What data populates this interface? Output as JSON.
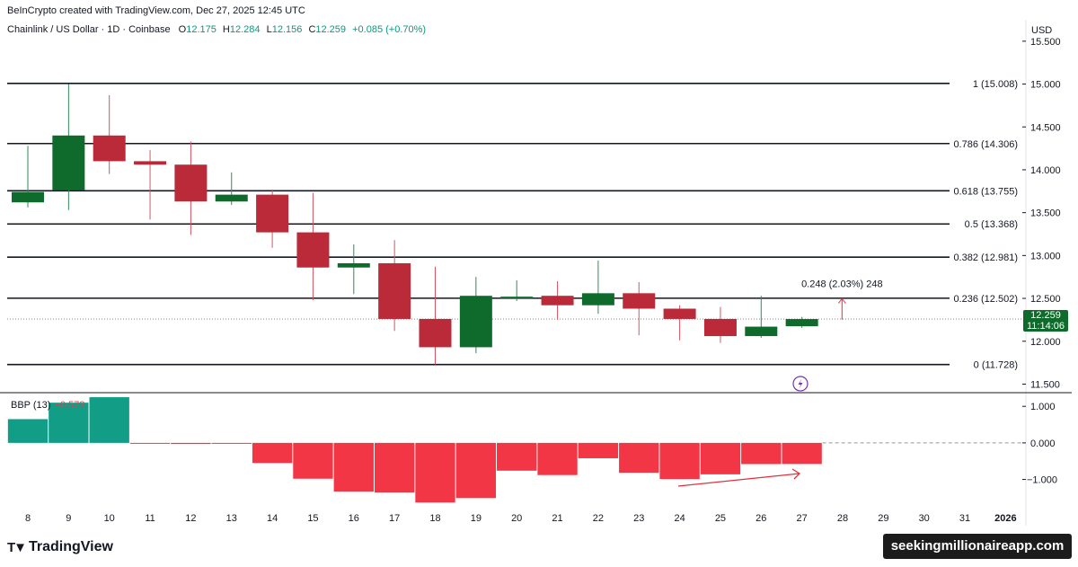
{
  "header": {
    "credit": "BeInCrypto created with TradingView.com, Dec 27, 2025 12:45 UTC",
    "symbol": "Chainlink / US Dollar · 1D · Coinbase",
    "o_label": "O",
    "o_value": "12.175",
    "h_label": "H",
    "h_value": "12.284",
    "l_label": "L",
    "l_value": "12.156",
    "c_label": "C",
    "c_value": "12.259",
    "change": "+0.085 (+0.70%)",
    "currency": "USD"
  },
  "price_badge": {
    "price": "12.259",
    "countdown": "11:14:06"
  },
  "indicator": {
    "name": "BBP (13)",
    "value": "−0.578"
  },
  "branding": {
    "logo": "TradingView",
    "watermark": "seekingmillionaireapp.com"
  },
  "colors": {
    "up": "#0f6b2b",
    "down": "#bb2a38",
    "bbp_pos": "#129e86",
    "bbp_neg": "#f23645",
    "accent_red": "#e0313c"
  },
  "chart_data": {
    "type": "candlestick",
    "title": "Chainlink / US Dollar · 1D · Coinbase",
    "x_ticks": [
      "8",
      "9",
      "10",
      "11",
      "12",
      "13",
      "14",
      "15",
      "16",
      "17",
      "18",
      "19",
      "20",
      "21",
      "22",
      "23",
      "24",
      "25",
      "26",
      "27",
      "28",
      "29",
      "30",
      "31",
      "2026"
    ],
    "y_ticks": [
      "15.500",
      "15.000",
      "14.500",
      "14.000",
      "13.500",
      "13.000",
      "12.500",
      "12.000",
      "11.500"
    ],
    "ylim": [
      11.4,
      15.75
    ],
    "candles": [
      {
        "day": "8",
        "o": 13.62,
        "h": 14.28,
        "l": 13.56,
        "c": 13.74
      },
      {
        "day": "9",
        "o": 13.76,
        "h": 15.0,
        "l": 13.53,
        "c": 14.4
      },
      {
        "day": "10",
        "o": 14.4,
        "h": 14.87,
        "l": 13.95,
        "c": 14.1
      },
      {
        "day": "11",
        "o": 14.1,
        "h": 14.23,
        "l": 13.42,
        "c": 14.06
      },
      {
        "day": "12",
        "o": 14.06,
        "h": 14.33,
        "l": 13.24,
        "c": 13.63
      },
      {
        "day": "13",
        "o": 13.63,
        "h": 13.97,
        "l": 13.59,
        "c": 13.71
      },
      {
        "day": "14",
        "o": 13.71,
        "h": 13.77,
        "l": 13.09,
        "c": 13.27
      },
      {
        "day": "15",
        "o": 13.27,
        "h": 13.73,
        "l": 12.48,
        "c": 12.86
      },
      {
        "day": "16",
        "o": 12.86,
        "h": 13.13,
        "l": 12.55,
        "c": 12.91
      },
      {
        "day": "17",
        "o": 12.91,
        "h": 13.18,
        "l": 12.12,
        "c": 12.26
      },
      {
        "day": "18",
        "o": 12.26,
        "h": 12.87,
        "l": 11.73,
        "c": 11.93
      },
      {
        "day": "19",
        "o": 11.93,
        "h": 12.75,
        "l": 11.86,
        "c": 12.53
      },
      {
        "day": "20",
        "o": 12.5,
        "h": 12.71,
        "l": 12.47,
        "c": 12.52
      },
      {
        "day": "21",
        "o": 12.53,
        "h": 12.7,
        "l": 12.25,
        "c": 12.42
      },
      {
        "day": "22",
        "o": 12.42,
        "h": 12.94,
        "l": 12.32,
        "c": 12.56
      },
      {
        "day": "23",
        "o": 12.56,
        "h": 12.69,
        "l": 12.07,
        "c": 12.38
      },
      {
        "day": "24",
        "o": 12.38,
        "h": 12.42,
        "l": 12.01,
        "c": 12.26
      },
      {
        "day": "25",
        "o": 12.26,
        "h": 12.4,
        "l": 11.98,
        "c": 12.06
      },
      {
        "day": "26",
        "o": 12.06,
        "h": 12.53,
        "l": 12.04,
        "c": 12.17
      },
      {
        "day": "27",
        "o": 12.175,
        "h": 12.284,
        "l": 12.156,
        "c": 12.259
      }
    ],
    "fib_levels": [
      {
        "ratio": "1",
        "price": 15.008,
        "label": "1 (15.008)"
      },
      {
        "ratio": "0.786",
        "price": 14.306,
        "label": "0.786 (14.306)"
      },
      {
        "ratio": "0.618",
        "price": 13.755,
        "label": "0.618 (13.755)"
      },
      {
        "ratio": "0.5",
        "price": 13.368,
        "label": "0.5 (13.368)"
      },
      {
        "ratio": "0.382",
        "price": 12.981,
        "label": "0.382 (12.981)"
      },
      {
        "ratio": "0.236",
        "price": 12.502,
        "label": "0.236 (12.502)"
      },
      {
        "ratio": "0",
        "price": 11.728,
        "label": "0 (11.728)"
      }
    ],
    "measure": {
      "label": "0.248 (2.03%) 248",
      "from": 12.259,
      "to": 12.507,
      "from_day": "27.5",
      "to_day": "28"
    },
    "bbp": {
      "name": "BBP (13)",
      "y_ticks": [
        "1.000",
        "0.000",
        "−1.000"
      ],
      "ylim": [
        -1.65,
        1.3
      ],
      "values": [
        0.65,
        1.1,
        1.25,
        -0.02,
        -0.03,
        -0.02,
        -0.55,
        -0.98,
        -1.33,
        -1.36,
        -1.63,
        -1.51,
        -0.76,
        -0.88,
        -0.42,
        -0.82,
        -0.99,
        -0.86,
        -0.58,
        -0.578
      ]
    },
    "current_price": 12.259
  }
}
